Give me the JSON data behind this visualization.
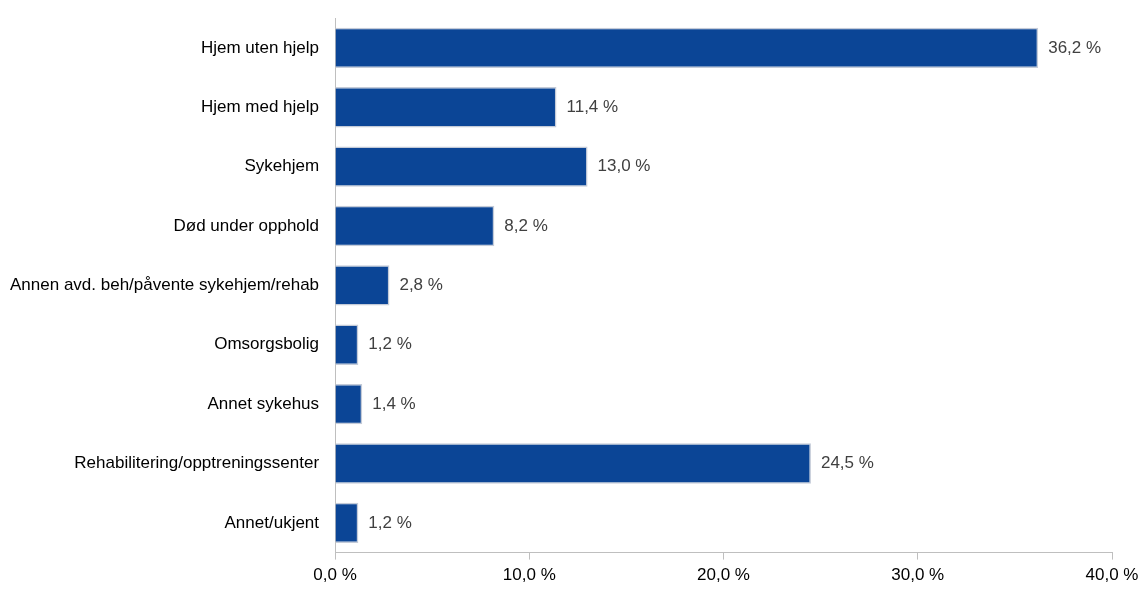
{
  "chart_data": {
    "type": "bar",
    "orientation": "horizontal",
    "categories": [
      "Hjem uten hjelp",
      "Hjem med hjelp",
      "Sykehjem",
      "Død under opphold",
      "Annen avd. beh/påvente sykehjem/rehab",
      "Omsorgsbolig",
      "Annet sykehus",
      "Rehabilitering/opptreningssenter",
      "Annet/ukjent"
    ],
    "values": [
      36.2,
      11.4,
      13.0,
      8.2,
      2.8,
      1.2,
      1.4,
      24.5,
      1.2
    ],
    "value_labels": [
      "36,2 %",
      "11,4 %",
      "13,0 %",
      "8,2 %",
      "2,8 %",
      "1,2 %",
      "1,4 %",
      "24,5 %",
      "1,2 %"
    ],
    "color": "#0b4596",
    "xlim": [
      0,
      40
    ],
    "xticks": [
      {
        "value": 0,
        "label": "0,0 %"
      },
      {
        "value": 10,
        "label": "10,0 %"
      },
      {
        "value": 20,
        "label": "20,0 %"
      },
      {
        "value": 30,
        "label": "30,0 %"
      },
      {
        "value": 40,
        "label": "40,0 %"
      }
    ],
    "legend": false
  }
}
